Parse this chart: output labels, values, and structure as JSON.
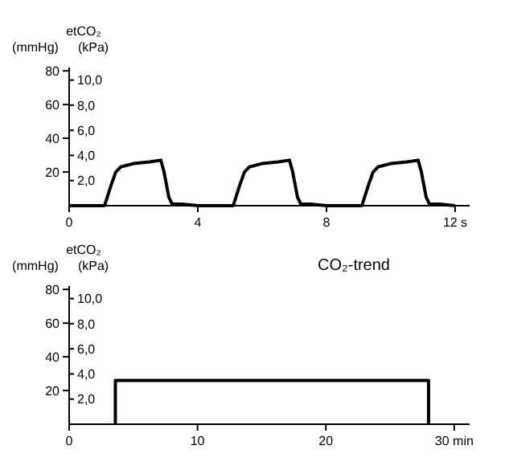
{
  "chart_data": [
    {
      "type": "line",
      "title": "etCO₂",
      "ylabel": "(mmHg)",
      "y2label": "(kPa)",
      "series": [
        {
          "color": "#000000",
          "x": [
            0,
            1.1,
            1.3,
            1.45,
            1.6,
            2.0,
            2.5,
            2.85,
            2.95,
            3.1,
            3.2,
            3.5,
            4,
            5.1,
            5.3,
            5.45,
            5.6,
            6.0,
            6.5,
            6.85,
            6.95,
            7.1,
            7.2,
            7.5,
            8,
            9.1,
            9.3,
            9.45,
            9.6,
            10.0,
            10.5,
            10.85,
            10.95,
            11.1,
            11.2,
            11.5,
            12
          ],
          "values": [
            0,
            0,
            12,
            20,
            23,
            25,
            26,
            27,
            20,
            5,
            1,
            1,
            0,
            0,
            12,
            20,
            23,
            25,
            26,
            27,
            20,
            5,
            1,
            1,
            0,
            0,
            12,
            20,
            23,
            25,
            26,
            27,
            20,
            5,
            1,
            1,
            0
          ]
        }
      ],
      "xlim": [
        0,
        12.45
      ],
      "xticks": [
        0,
        4,
        8,
        {
          "value": 12,
          "label": "12 s"
        }
      ],
      "ylim": [
        0,
        82
      ],
      "yticks": [
        20,
        40,
        60,
        80
      ],
      "y2lim": [
        0,
        11
      ],
      "y2ticks": [
        {
          "value": 2,
          "label": "2,0"
        },
        {
          "value": 4,
          "label": "4,0"
        },
        {
          "value": 6,
          "label": "6,0"
        },
        {
          "value": 8,
          "label": "8,0"
        },
        {
          "value": 10,
          "label": "10,0"
        }
      ]
    },
    {
      "type": "line",
      "title": "etCO₂",
      "ylabel": "(mmHg)",
      "y2label": "(kPa)",
      "annotations": [
        "CO₂-trend"
      ],
      "series": [
        {
          "color": "#000000",
          "x": [
            3.6,
            3.6,
            28,
            28
          ],
          "values": [
            0,
            26,
            26,
            0
          ]
        }
      ],
      "xlim": [
        0,
        31.2
      ],
      "xticks": [
        0,
        10,
        20,
        {
          "value": 30,
          "label": "30 min"
        }
      ],
      "ylim": [
        0,
        82
      ],
      "yticks": [
        20,
        40,
        60,
        80
      ],
      "y2lim": [
        0,
        11
      ],
      "y2ticks": [
        {
          "value": 2,
          "label": "2,0"
        },
        {
          "value": 4,
          "label": "4,0"
        },
        {
          "value": 6,
          "label": "6,0"
        },
        {
          "value": 8,
          "label": "8,0"
        },
        {
          "value": 10,
          "label": "10,0"
        }
      ]
    }
  ]
}
